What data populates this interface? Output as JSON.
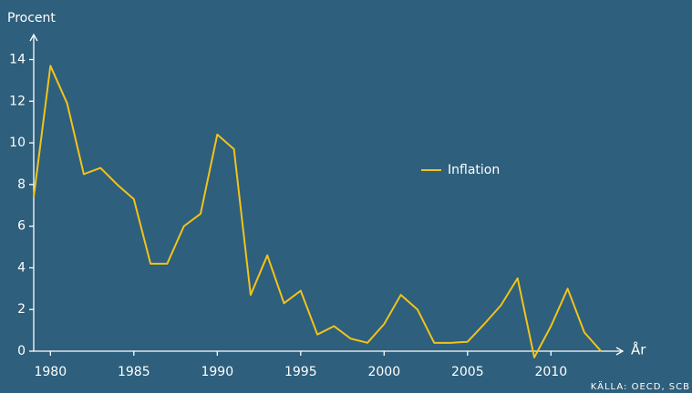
{
  "chart_data": {
    "type": "line",
    "y_label": "Procent",
    "x_label": "År",
    "source": "KÄLLA: OECD, SCB",
    "x": [
      1979,
      1980,
      1981,
      1982,
      1983,
      1984,
      1985,
      1986,
      1987,
      1988,
      1989,
      1990,
      1991,
      1992,
      1993,
      1994,
      1995,
      1996,
      1997,
      1998,
      1999,
      2000,
      2001,
      2002,
      2003,
      2004,
      2005,
      2006,
      2007,
      2008,
      2009,
      2010,
      2011,
      2012,
      2013
    ],
    "series": [
      {
        "name": "Inflation",
        "color": "#f2c31a",
        "values": [
          7.4,
          13.7,
          11.9,
          8.5,
          8.8,
          8.0,
          7.3,
          4.2,
          4.2,
          6.0,
          6.6,
          10.4,
          9.7,
          2.7,
          4.6,
          2.3,
          2.9,
          0.8,
          1.2,
          0.6,
          0.4,
          1.3,
          2.7,
          2.0,
          0.4,
          0.4,
          0.45,
          1.3,
          2.2,
          3.5,
          -0.3,
          1.2,
          3.0,
          0.9,
          0.0
        ]
      }
    ],
    "xlim": [
      1979,
      2014.3
    ],
    "ylim": [
      0,
      15.2
    ],
    "xticks": [
      1980,
      1985,
      1990,
      1995,
      2000,
      2005,
      2010
    ],
    "yticks": [
      0,
      2,
      4,
      6,
      8,
      10,
      12,
      14
    ],
    "grid": false,
    "legend": "center-right"
  }
}
